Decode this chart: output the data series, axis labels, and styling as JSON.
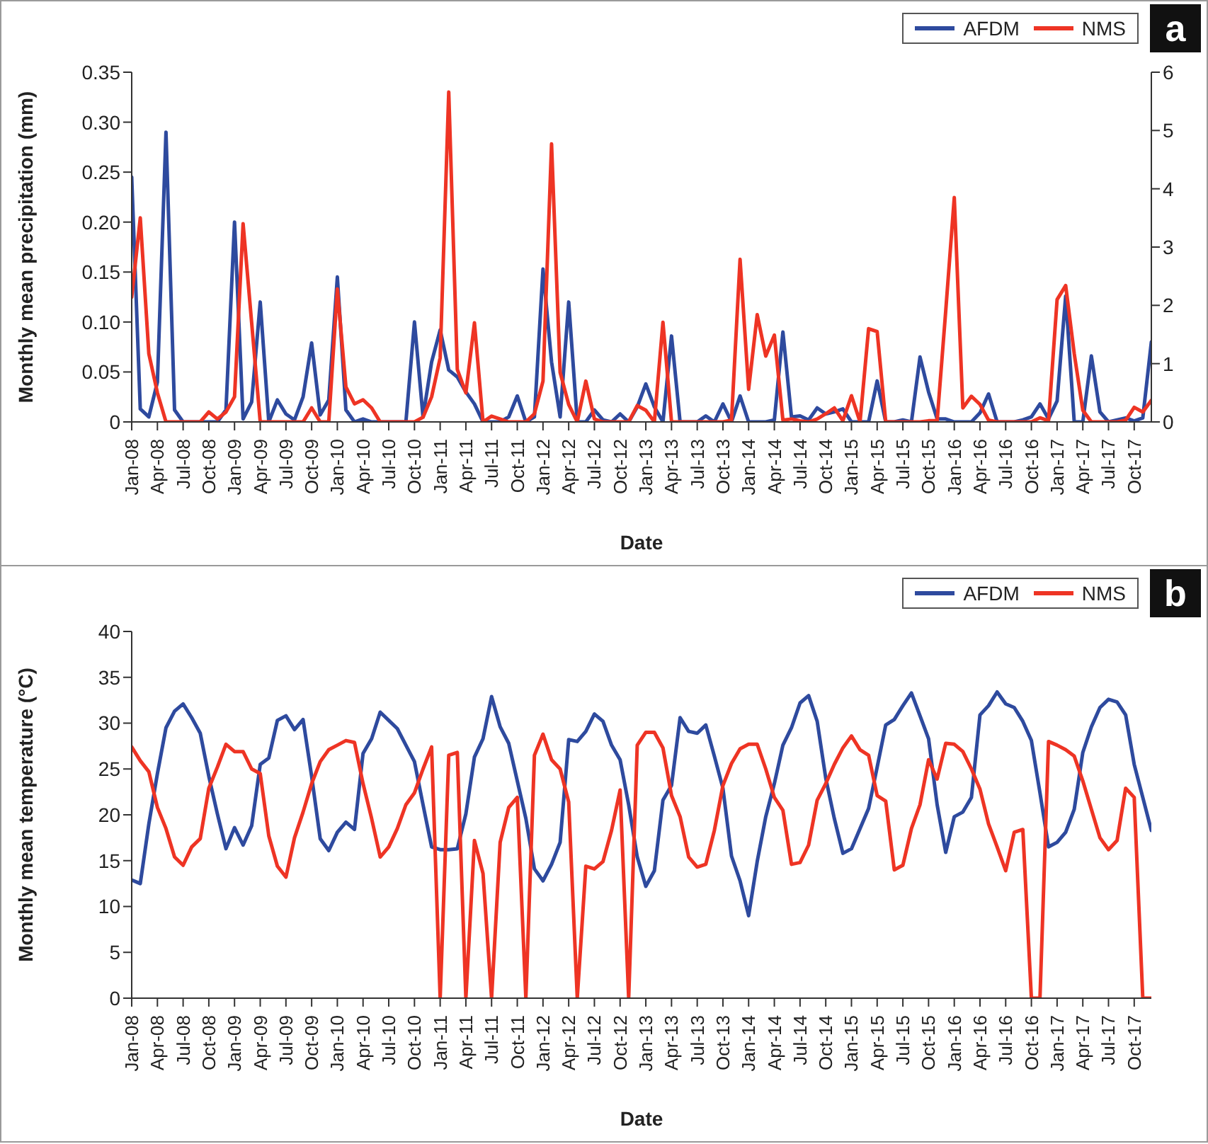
{
  "chart_data": [
    {
      "type": "line",
      "xlabel": "Date",
      "ylabel": "Monthly mean precipitation (mm)",
      "annotations": [
        "a"
      ],
      "legend": "top right",
      "ylim": [
        0,
        0.35
      ],
      "yticks": [
        0,
        0.05,
        {
          "value": 0.1,
          "label": "0.10"
        },
        0.15,
        {
          "value": 0.2,
          "label": "0.20"
        },
        0.25,
        {
          "value": 0.3,
          "label": "0.30"
        },
        0.35
      ],
      "y2lim": [
        0,
        6
      ],
      "y2ticks": [
        0,
        1,
        2,
        3,
        4,
        5,
        6
      ],
      "categories": [
        "Jan-08",
        null,
        null,
        "Apr-08",
        null,
        null,
        "Jul-08",
        null,
        null,
        "Oct-08",
        null,
        null,
        "Jan-09",
        null,
        null,
        "Apr-09",
        null,
        null,
        "Jul-09",
        null,
        null,
        "Oct-09",
        null,
        null,
        "Jan-10",
        null,
        null,
        "Apr-10",
        null,
        null,
        "Jul-10",
        null,
        null,
        "Oct-10",
        null,
        null,
        "Jan-11",
        null,
        null,
        "Apr-11",
        null,
        null,
        "Jul-11",
        null,
        null,
        "Oct-11",
        null,
        null,
        "Jan-12",
        null,
        null,
        "Apr-12",
        null,
        null,
        "Jul-12",
        null,
        null,
        "Oct-12",
        null,
        null,
        "Jan-13",
        null,
        null,
        "Apr-13",
        null,
        null,
        "Jul-13",
        null,
        null,
        "Oct-13",
        null,
        null,
        "Jan-14",
        null,
        null,
        "Apr-14",
        null,
        null,
        "Jul-14",
        null,
        null,
        "Oct-14",
        null,
        null,
        "Jan-15",
        null,
        null,
        "Apr-15",
        null,
        null,
        "Jul-15",
        null,
        null,
        "Oct-15",
        null,
        null,
        "Jan-16",
        null,
        null,
        "Apr-16",
        null,
        null,
        "Jul-16",
        null,
        null,
        "Oct-16",
        null,
        null,
        "Jan-17",
        null,
        null,
        "Apr-17",
        null,
        null,
        "Jul-17",
        null,
        null,
        "Oct-17",
        null,
        null
      ],
      "series": [
        {
          "name": "AFDM",
          "color": "#2e4a9e",
          "values": [
            0.245,
            0.013,
            0.005,
            0.04,
            0.29,
            0.012,
            0,
            0,
            0,
            0,
            0,
            0.012,
            0.2,
            0.003,
            0.02,
            0.12,
            0,
            0.022,
            0.008,
            0.002,
            0.025,
            0.079,
            0.007,
            0.022,
            0.145,
            0.012,
            0,
            0.003,
            0,
            0,
            0,
            0,
            0,
            0.1,
            0.005,
            0.06,
            0.092,
            0.052,
            0.045,
            0.03,
            0.018,
            0,
            0,
            0,
            0.005,
            0.026,
            0,
            0.005,
            0.153,
            0.06,
            0.005,
            0.12,
            0,
            0,
            0.012,
            0.002,
            0,
            0.008,
            0,
            0.015,
            0.038,
            0.015,
            0,
            0.086,
            0,
            0,
            0,
            0.006,
            0,
            0.018,
            0,
            0.026,
            0,
            0,
            0,
            0.002,
            0.09,
            0.005,
            0.006,
            0.002,
            0.014,
            0.008,
            0.01,
            0.013,
            0,
            0,
            0,
            0.041,
            0,
            0,
            0.002,
            0,
            0.065,
            0.03,
            0.003,
            0.003,
            0,
            0,
            0,
            0.009,
            0.028,
            0,
            0,
            0,
            0.002,
            0.005,
            0.018,
            0.003,
            0.021,
            0.126,
            0,
            0,
            0.066,
            0.01,
            0,
            0.002,
            0.004,
            0.001,
            0.004,
            0.08
          ]
        },
        {
          "name": "NMS",
          "color": "#ee3424",
          "axis": "y2",
          "values": [
            2.14,
            3.5,
            1.17,
            0.5,
            0,
            0,
            0,
            0,
            0,
            0.17,
            0.05,
            0.17,
            0.43,
            3.4,
            1.7,
            0,
            0,
            0,
            0,
            0,
            0,
            0.24,
            0,
            0,
            2.28,
            0.6,
            0.31,
            0.38,
            0.24,
            0,
            0,
            0,
            0,
            0,
            0.08,
            0.43,
            1.1,
            5.66,
            0.9,
            0.5,
            1.7,
            0,
            0.1,
            0.05,
            0,
            0,
            0,
            0.14,
            0.7,
            4.77,
            0.85,
            0.3,
            0,
            0.7,
            0.05,
            0,
            0,
            0,
            0,
            0.28,
            0.2,
            0,
            1.71,
            0,
            0,
            0,
            0,
            0,
            0,
            0,
            0.03,
            2.79,
            0.56,
            1.84,
            1.13,
            1.49,
            0.03,
            0.05,
            0.02,
            0,
            0.05,
            0.14,
            0.24,
            0.02,
            0.45,
            0,
            1.6,
            1.55,
            0,
            0,
            0,
            0,
            0,
            0.02,
            0.02,
            1.9,
            3.85,
            0.24,
            0.44,
            0.3,
            0.03,
            0,
            0,
            0,
            0,
            0,
            0.07,
            0.02,
            2.1,
            2.34,
            1.17,
            0.2,
            0,
            0,
            0,
            0,
            0.03,
            0.25,
            0.17,
            0.37
          ]
        }
      ]
    },
    {
      "type": "line",
      "xlabel": "Date",
      "ylabel": "Monthly mean temperature (°C)",
      "annotations": [
        "b"
      ],
      "legend": "top right",
      "ylim": [
        0,
        40
      ],
      "yticks": [
        0,
        5,
        10,
        15,
        20,
        25,
        30,
        35,
        40
      ],
      "categories": [
        "Jan-08",
        null,
        null,
        "Apr-08",
        null,
        null,
        "Jul-08",
        null,
        null,
        "Oct-08",
        null,
        null,
        "Jan-09",
        null,
        null,
        "Apr-09",
        null,
        null,
        "Jul-09",
        null,
        null,
        "Oct-09",
        null,
        null,
        "Jan-10",
        null,
        null,
        "Apr-10",
        null,
        null,
        "Jul-10",
        null,
        null,
        "Oct-10",
        null,
        null,
        "Jan-11",
        null,
        null,
        "Apr-11",
        null,
        null,
        "Jul-11",
        null,
        null,
        "Oct-11",
        null,
        null,
        "Jan-12",
        null,
        null,
        "Apr-12",
        null,
        null,
        "Jul-12",
        null,
        null,
        "Oct-12",
        null,
        null,
        "Jan-13",
        null,
        null,
        "Apr-13",
        null,
        null,
        "Jul-13",
        null,
        null,
        "Oct-13",
        null,
        null,
        "Jan-14",
        null,
        null,
        "Apr-14",
        null,
        null,
        "Jul-14",
        null,
        null,
        "Oct-14",
        null,
        null,
        "Jan-15",
        null,
        null,
        "Apr-15",
        null,
        null,
        "Jul-15",
        null,
        null,
        "Oct-15",
        null,
        null,
        "Jan-16",
        null,
        null,
        "Apr-16",
        null,
        null,
        "Jul-16",
        null,
        null,
        "Oct-16",
        null,
        null,
        "Jan-17",
        null,
        null,
        "Apr-17",
        null,
        null,
        "Jul-17",
        null,
        null,
        "Oct-17",
        null,
        null
      ],
      "series": [
        {
          "name": "AFDM",
          "color": "#2e4a9e",
          "values": [
            12.9,
            12.5,
            19,
            24.5,
            29.5,
            31.3,
            32.1,
            30.6,
            28.9,
            24.2,
            20.1,
            16.3,
            18.6,
            16.7,
            18.8,
            25.5,
            26.2,
            30.3,
            30.8,
            29.3,
            30.4,
            24.2,
            17.4,
            16.1,
            18.1,
            19.2,
            18.4,
            26.7,
            28.3,
            31.2,
            30.3,
            29.4,
            27.6,
            25.8,
            21.1,
            16.5,
            16.2,
            16.2,
            16.3,
            20.1,
            26.3,
            28.3,
            32.9,
            29.6,
            27.8,
            23.7,
            19.6,
            14.1,
            12.8,
            14.6,
            17,
            28.2,
            28,
            29.1,
            31,
            30.2,
            27.6,
            26,
            21.1,
            15.4,
            12.2,
            13.9,
            21.6,
            23.2,
            30.6,
            29.1,
            28.9,
            29.8,
            26.4,
            22.9,
            15.5,
            12.8,
            9,
            14.9,
            19.8,
            23.4,
            27.6,
            29.5,
            32.2,
            33,
            30.2,
            24,
            19.6,
            15.8,
            16.3,
            18.5,
            20.7,
            25.2,
            29.8,
            30.4,
            31.9,
            33.3,
            30.8,
            28.3,
            21.1,
            15.9,
            19.8,
            20.3,
            21.9,
            30.9,
            31.9,
            33.4,
            32.1,
            31.7,
            30.2,
            28.1,
            22.4,
            16.5,
            17,
            18.1,
            20.6,
            26.8,
            29.6,
            31.7,
            32.6,
            32.3,
            30.9,
            25.5,
            21.9,
            18.3
          ]
        },
        {
          "name": "NMS",
          "color": "#ee3424",
          "values": [
            27.4,
            25.9,
            24.7,
            20.8,
            18.5,
            15.4,
            14.5,
            16.5,
            17.4,
            22.9,
            25.2,
            27.7,
            26.9,
            26.9,
            25,
            24.5,
            17.7,
            14.4,
            13.2,
            17.5,
            20.3,
            23.4,
            25.8,
            27.1,
            27.6,
            28.1,
            27.9,
            23.4,
            19.6,
            15.4,
            16.5,
            18.5,
            21.1,
            22.4,
            25,
            27.4,
            0,
            26.5,
            26.8,
            0,
            17.2,
            13.6,
            0,
            17,
            20.8,
            21.9,
            0,
            26.5,
            28.8,
            26,
            25,
            21.4,
            0,
            14.4,
            14.1,
            14.9,
            18.3,
            22.7,
            0,
            27.6,
            29,
            29,
            27.3,
            22.1,
            19.8,
            15.4,
            14.3,
            14.6,
            18.3,
            23.2,
            25.6,
            27.2,
            27.7,
            27.7,
            25,
            21.9,
            20.5,
            14.6,
            14.8,
            16.7,
            21.6,
            23.4,
            25.5,
            27.3,
            28.6,
            27.1,
            26.5,
            22.1,
            21.5,
            14,
            14.5,
            18.5,
            21.1,
            26,
            23.9,
            27.8,
            27.7,
            26.9,
            25,
            22.8,
            19,
            16.5,
            13.9,
            18.1,
            18.4,
            0,
            0,
            28,
            27.6,
            27.1,
            26.4,
            23.7,
            20.6,
            17.5,
            16.2,
            17.2,
            22.9,
            21.9,
            0,
            0
          ]
        }
      ]
    }
  ]
}
